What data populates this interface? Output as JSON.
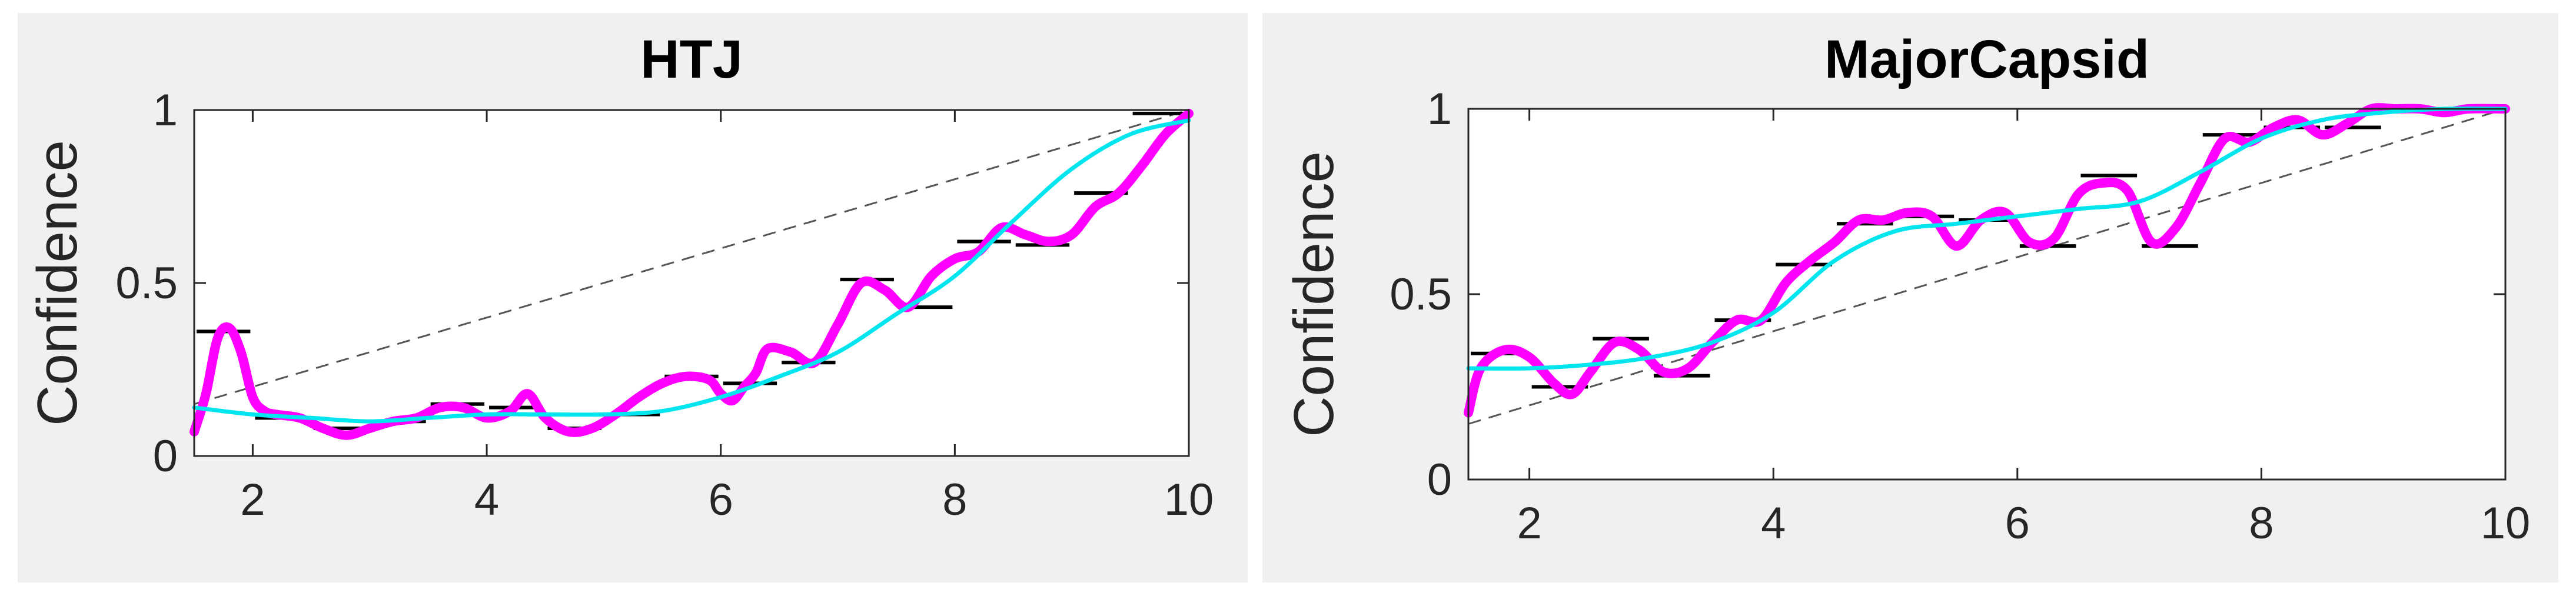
{
  "chart_data": [
    {
      "type": "line",
      "title": "HTJ",
      "ylabel": "Confidence",
      "xlabel": "",
      "xlim": [
        1.5,
        10
      ],
      "ylim": [
        0,
        1
      ],
      "xticks": [
        2,
        4,
        6,
        8,
        10
      ],
      "yticks": [
        0,
        0.5,
        1
      ],
      "tick_labels_x": [
        "2",
        "4",
        "6",
        "8",
        "10"
      ],
      "tick_labels_y": [
        "0",
        "0.5",
        "1"
      ],
      "grid": false,
      "legend": "none",
      "colors": {
        "raw": "#ff00ff",
        "smooth": "#00e5ee",
        "reference": "#555555",
        "bins": "#000000"
      },
      "reference_line": {
        "x": [
          1.5,
          10
        ],
        "y": [
          0.15,
          1.0
        ]
      },
      "bins": {
        "x_start": [
          1.5,
          2.0,
          2.5,
          3.0,
          3.5,
          4.0,
          4.5,
          5.0,
          5.5,
          6.0,
          6.5,
          7.0,
          7.5,
          8.0,
          8.5,
          9.0,
          9.5
        ],
        "x_end": [
          2.0,
          2.5,
          3.0,
          3.5,
          4.0,
          4.5,
          5.0,
          5.5,
          6.0,
          6.5,
          7.0,
          7.5,
          8.0,
          8.5,
          9.0,
          9.5,
          10.0
        ],
        "y": [
          0.36,
          0.11,
          0.08,
          0.1,
          0.15,
          0.14,
          0.08,
          0.12,
          0.23,
          0.21,
          0.27,
          0.51,
          0.43,
          0.62,
          0.61,
          0.76,
          0.99
        ]
      },
      "series": [
        {
          "key": "raw",
          "x": [
            1.5,
            1.6,
            1.7,
            1.8,
            1.9,
            2.0,
            2.1,
            2.2,
            2.4,
            2.6,
            2.8,
            3.0,
            3.2,
            3.4,
            3.6,
            3.8,
            4.0,
            4.2,
            4.35,
            4.5,
            4.7,
            4.9,
            5.1,
            5.3,
            5.5,
            5.7,
            5.9,
            6.0,
            6.1,
            6.2,
            6.3,
            6.4,
            6.6,
            6.8,
            7.0,
            7.2,
            7.4,
            7.6,
            7.8,
            8.0,
            8.2,
            8.4,
            8.6,
            8.8,
            9.0,
            9.2,
            9.4,
            9.6,
            9.8,
            10.0
          ],
          "y": [
            0.07,
            0.18,
            0.34,
            0.37,
            0.3,
            0.17,
            0.13,
            0.12,
            0.11,
            0.08,
            0.06,
            0.08,
            0.1,
            0.11,
            0.14,
            0.14,
            0.11,
            0.13,
            0.18,
            0.11,
            0.07,
            0.08,
            0.12,
            0.17,
            0.21,
            0.23,
            0.22,
            0.18,
            0.16,
            0.2,
            0.24,
            0.31,
            0.3,
            0.27,
            0.38,
            0.5,
            0.48,
            0.43,
            0.52,
            0.57,
            0.59,
            0.66,
            0.64,
            0.62,
            0.64,
            0.72,
            0.76,
            0.84,
            0.93,
            0.99
          ]
        },
        {
          "key": "smooth",
          "x": [
            1.5,
            2.0,
            2.5,
            3.0,
            3.5,
            4.0,
            4.5,
            5.0,
            5.5,
            6.0,
            6.5,
            7.0,
            7.5,
            8.0,
            8.5,
            9.0,
            9.5,
            10.0
          ],
          "y": [
            0.14,
            0.12,
            0.11,
            0.1,
            0.11,
            0.12,
            0.12,
            0.12,
            0.13,
            0.17,
            0.23,
            0.3,
            0.41,
            0.52,
            0.68,
            0.83,
            0.93,
            0.97
          ]
        }
      ]
    },
    {
      "type": "line",
      "title": "MajorCapsid",
      "ylabel": "Confidence",
      "xlabel": "",
      "xlim": [
        1.5,
        10
      ],
      "ylim": [
        0,
        1
      ],
      "xticks": [
        2,
        4,
        6,
        8,
        10
      ],
      "yticks": [
        0,
        0.5,
        1
      ],
      "tick_labels_x": [
        "2",
        "4",
        "6",
        "8",
        "10"
      ],
      "tick_labels_y": [
        "0",
        "0.5",
        "1"
      ],
      "grid": false,
      "legend": "none",
      "colors": {
        "raw": "#ff00ff",
        "smooth": "#00e5ee",
        "reference": "#555555",
        "bins": "#000000"
      },
      "reference_line": {
        "x": [
          1.5,
          10
        ],
        "y": [
          0.15,
          1.0
        ]
      },
      "bins": {
        "x_start": [
          1.5,
          2.0,
          2.5,
          3.0,
          3.5,
          4.0,
          4.5,
          5.0,
          5.5,
          6.0,
          6.5,
          7.0,
          7.5,
          8.0,
          8.5,
          9.0,
          9.5
        ],
        "x_end": [
          2.0,
          2.5,
          3.0,
          3.5,
          4.0,
          4.5,
          5.0,
          5.5,
          6.0,
          6.5,
          7.0,
          7.5,
          8.0,
          8.5,
          9.0,
          9.5,
          10.0
        ],
        "y": [
          0.34,
          0.25,
          0.38,
          0.28,
          0.43,
          0.58,
          0.69,
          0.71,
          0.7,
          0.63,
          0.82,
          0.63,
          0.93,
          0.95,
          0.95,
          1.0,
          1.0
        ]
      },
      "series": [
        {
          "key": "raw",
          "x": [
            1.5,
            1.6,
            1.8,
            2.0,
            2.2,
            2.35,
            2.5,
            2.7,
            2.9,
            3.1,
            3.3,
            3.5,
            3.7,
            3.9,
            4.1,
            4.3,
            4.5,
            4.7,
            4.9,
            5.1,
            5.3,
            5.5,
            5.7,
            5.9,
            6.1,
            6.3,
            6.5,
            6.7,
            6.9,
            7.1,
            7.3,
            7.5,
            7.7,
            7.9,
            8.1,
            8.3,
            8.5,
            8.7,
            8.9,
            9.1,
            9.3,
            9.5,
            9.7,
            10.0
          ],
          "y": [
            0.18,
            0.3,
            0.35,
            0.33,
            0.26,
            0.23,
            0.29,
            0.37,
            0.35,
            0.29,
            0.3,
            0.37,
            0.43,
            0.43,
            0.53,
            0.59,
            0.64,
            0.7,
            0.7,
            0.72,
            0.71,
            0.63,
            0.7,
            0.72,
            0.64,
            0.65,
            0.77,
            0.8,
            0.78,
            0.64,
            0.68,
            0.8,
            0.92,
            0.91,
            0.95,
            0.97,
            0.93,
            0.96,
            1.0,
            1.0,
            1.0,
            0.99,
            1.0,
            1.0
          ]
        },
        {
          "key": "smooth",
          "x": [
            1.5,
            2.0,
            2.5,
            3.0,
            3.5,
            4.0,
            4.5,
            5.0,
            5.5,
            6.0,
            6.5,
            7.0,
            7.5,
            8.0,
            8.5,
            9.0,
            9.5,
            10.0
          ],
          "y": [
            0.3,
            0.3,
            0.31,
            0.33,
            0.37,
            0.45,
            0.59,
            0.67,
            0.69,
            0.71,
            0.73,
            0.75,
            0.83,
            0.92,
            0.97,
            0.99,
            1.0,
            1.0
          ]
        }
      ]
    }
  ]
}
